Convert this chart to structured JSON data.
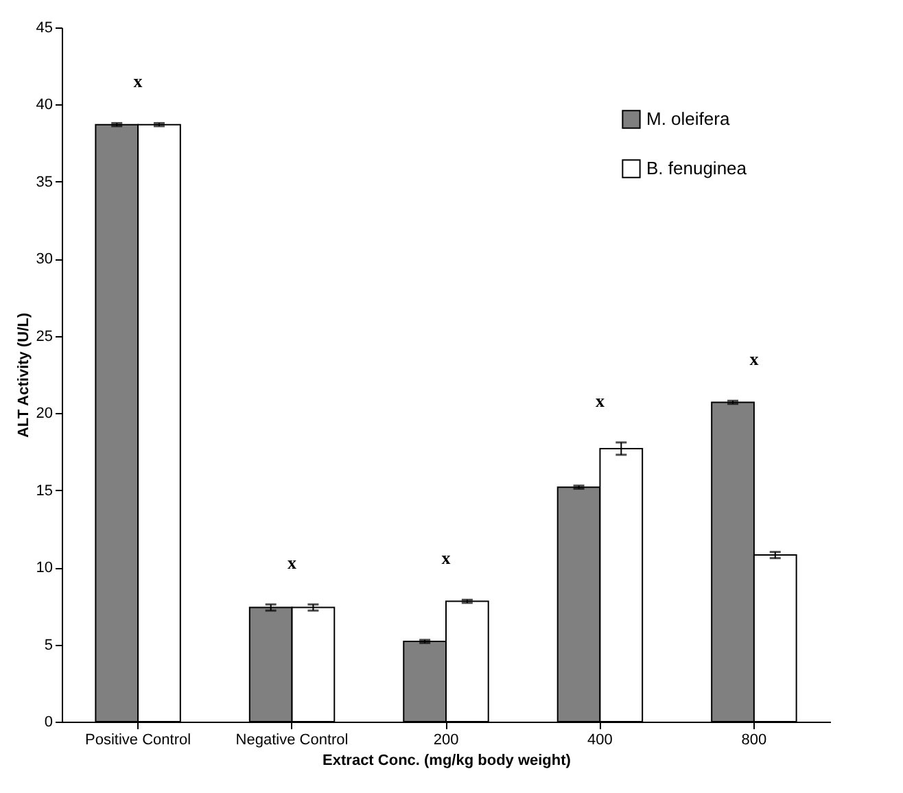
{
  "chart_data": {
    "type": "bar",
    "xlabel": "Extract Conc. (mg/kg body weight)",
    "ylabel": "ALT Activity (U/L)",
    "categories": [
      "Positive Control",
      "Negative Control",
      "200",
      "400",
      "800"
    ],
    "series": [
      {
        "name": "M. oleifera",
        "color": "#808080",
        "values": [
          38.7,
          7.4,
          5.2,
          15.2,
          20.7
        ],
        "errors": [
          0.1,
          0.2,
          0.1,
          0.1,
          0.1
        ]
      },
      {
        "name": "B. fenuginea",
        "color": "#ffffff",
        "values": [
          38.7,
          7.4,
          7.8,
          17.7,
          10.8
        ],
        "errors": [
          0.1,
          0.2,
          0.1,
          0.4,
          0.2
        ]
      }
    ],
    "ylim": [
      0,
      45
    ],
    "yticks": [
      0,
      5,
      10,
      15,
      20,
      25,
      30,
      35,
      40,
      45
    ],
    "grid": false,
    "legend": "top right",
    "annotations": [
      "x",
      "x",
      "x",
      "x",
      "x"
    ]
  }
}
